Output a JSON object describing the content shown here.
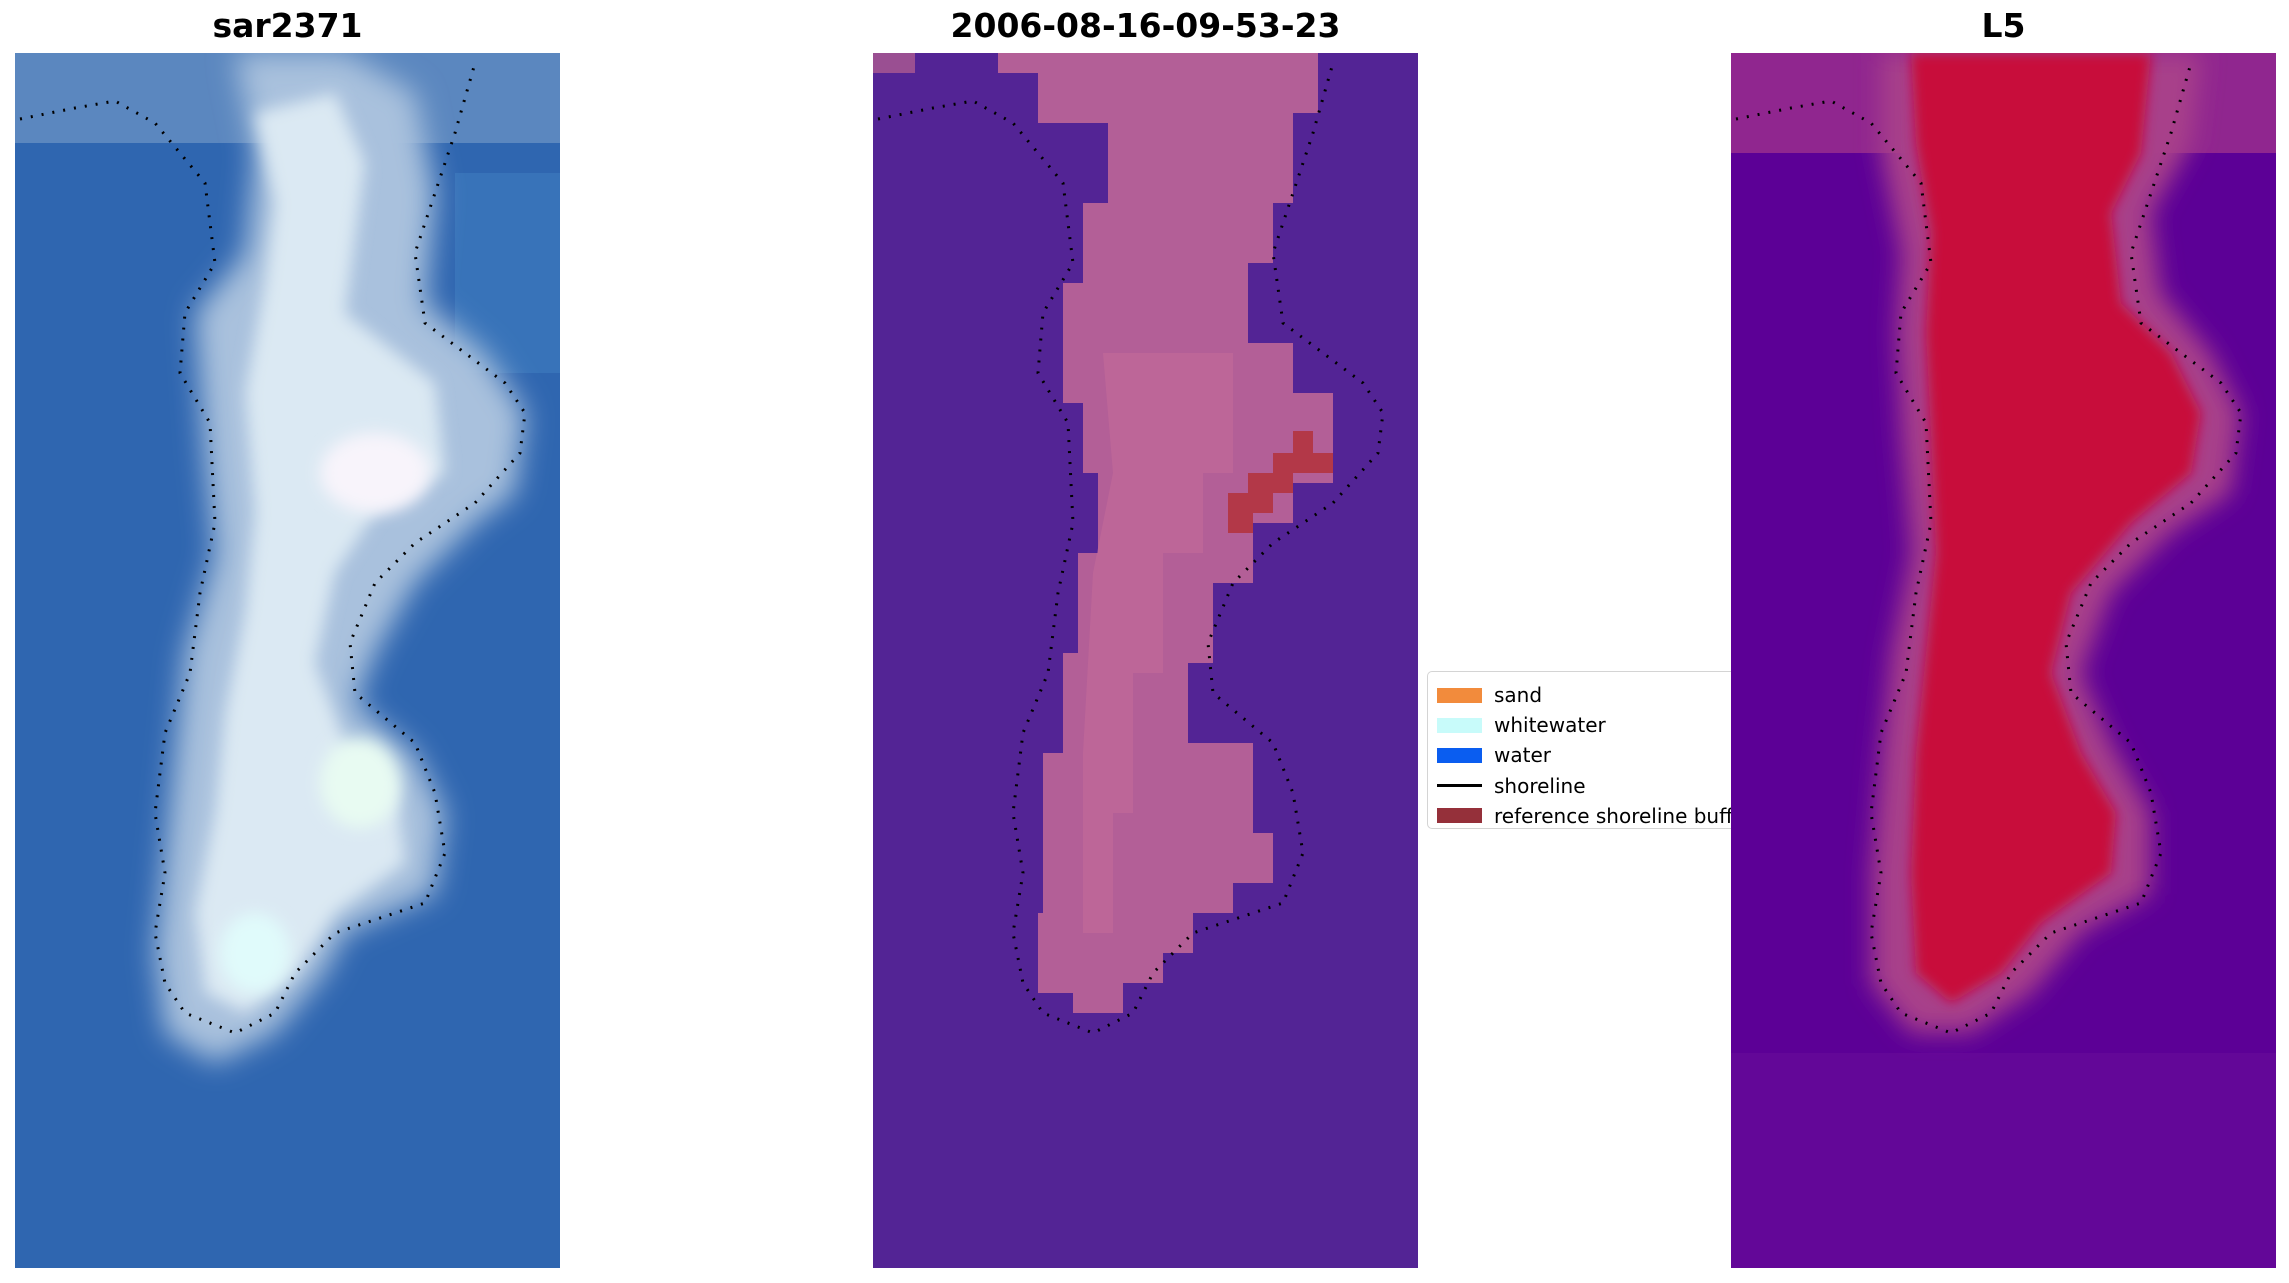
{
  "panels": [
    {
      "title": "sar2371"
    },
    {
      "title": "2006-08-16-09-53-23"
    },
    {
      "title": "L5"
    }
  ],
  "legend": {
    "items": [
      {
        "label": "sand",
        "color": "#f28b3c"
      },
      {
        "label": "whitewater",
        "color": "#c8fbfa"
      },
      {
        "label": "water",
        "color": "#0a5df0"
      },
      {
        "label": "shoreline",
        "color": "#000000"
      },
      {
        "label": "reference shoreline buffer",
        "color": "#95303a"
      }
    ]
  },
  "colors": {
    "rgb_water": "#2f66b0",
    "rgb_land_light": "#f2fbff",
    "class_water": "#532495",
    "class_sand_overlay": "#b35f97",
    "class_buffer": "#b33848",
    "l5_low": "#5c0096",
    "l5_high": "#c80a3a"
  }
}
